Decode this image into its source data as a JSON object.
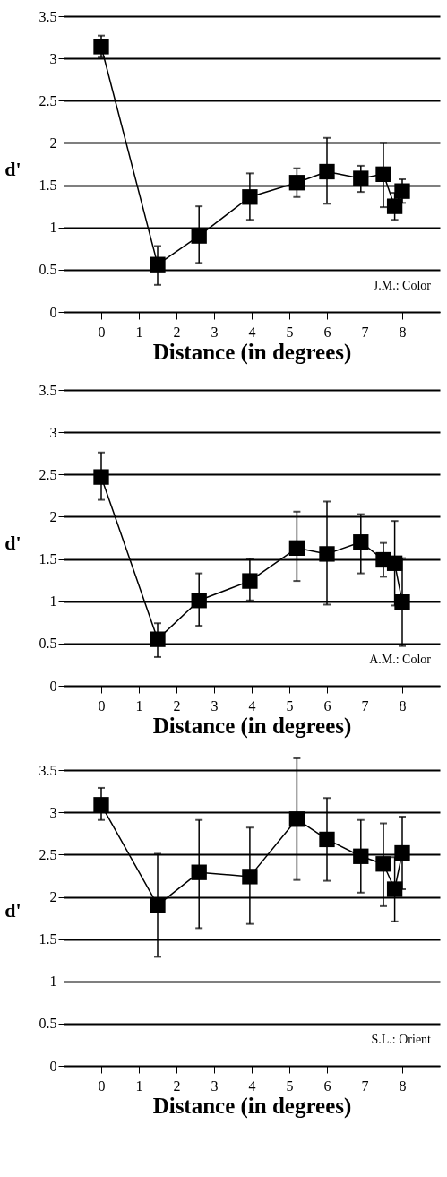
{
  "chart_data": [
    {
      "type": "line",
      "xlabel": "Distance (in degrees)",
      "ylabel": "d'",
      "annotations": [
        "J.M.: Color"
      ],
      "x": [
        0,
        1.5,
        2.6,
        3.95,
        5.2,
        6,
        6.9,
        7.5,
        7.8,
        8
      ],
      "series": [
        {
          "color": "#000000",
          "values": [
            3.14,
            0.56,
            0.9,
            1.36,
            1.53,
            1.66,
            1.58,
            1.63,
            1.25,
            1.43
          ],
          "errors": [
            [
              3.01,
              3.27
            ],
            [
              0.32,
              0.78
            ],
            [
              0.58,
              1.25
            ],
            [
              1.09,
              1.64
            ],
            [
              1.36,
              1.7
            ],
            [
              1.28,
              2.06
            ],
            [
              1.42,
              1.73
            ],
            [
              1.24,
              2.0
            ],
            [
              1.09,
              1.41
            ],
            [
              1.29,
              1.57
            ]
          ]
        }
      ],
      "xlim": [
        -1,
        9
      ],
      "xticks": [
        0,
        1,
        2,
        3,
        4,
        5,
        6,
        7,
        8
      ],
      "ylim": [
        0,
        3.5
      ],
      "yticks": [
        0,
        0.5,
        1,
        1.5,
        2,
        2.5,
        3,
        3.5
      ],
      "grid": "y",
      "marker": "square",
      "line_style": "solid"
    },
    {
      "type": "line",
      "xlabel": "Distance (in degrees)",
      "ylabel": "d'",
      "annotations": [
        "A.M.: Color"
      ],
      "x": [
        0,
        1.5,
        2.6,
        3.95,
        5.2,
        6,
        6.9,
        7.5,
        7.8,
        8
      ],
      "series": [
        {
          "color": "#000000",
          "values": [
            2.47,
            0.55,
            1.01,
            1.24,
            1.63,
            1.56,
            1.7,
            1.49,
            1.45,
            0.99
          ],
          "errors": [
            [
              2.2,
              2.76
            ],
            [
              0.34,
              0.74
            ],
            [
              0.71,
              1.33
            ],
            [
              1.01,
              1.5
            ],
            [
              1.24,
              2.06
            ],
            [
              0.96,
              2.18
            ],
            [
              1.33,
              2.03
            ],
            [
              1.29,
              1.69
            ],
            [
              0.95,
              1.95
            ],
            [
              0.47,
              1.51
            ]
          ]
        }
      ],
      "xlim": [
        -1,
        9
      ],
      "xticks": [
        0,
        1,
        2,
        3,
        4,
        5,
        6,
        7,
        8
      ],
      "ylim": [
        0,
        3.5
      ],
      "yticks": [
        0,
        0.5,
        1,
        1.5,
        2,
        2.5,
        3,
        3.5
      ],
      "grid": "y",
      "marker": "square",
      "line_style": "solid"
    },
    {
      "type": "line",
      "xlabel": "Distance (in degrees)",
      "ylabel": "d'",
      "annotations": [
        "S.L.: Orient"
      ],
      "x": [
        0,
        1.5,
        2.6,
        3.95,
        5.2,
        6,
        6.9,
        7.5,
        7.8,
        8
      ],
      "series": [
        {
          "color": "#000000",
          "values": [
            3.09,
            1.9,
            2.29,
            2.24,
            2.92,
            2.68,
            2.48,
            2.39,
            2.09,
            2.52
          ],
          "errors": [
            [
              2.91,
              3.29
            ],
            [
              1.29,
              2.51
            ],
            [
              1.63,
              2.91
            ],
            [
              1.68,
              2.82
            ],
            [
              2.2,
              3.64
            ],
            [
              2.19,
              3.17
            ],
            [
              2.05,
              2.91
            ],
            [
              1.89,
              2.87
            ],
            [
              1.71,
              2.47
            ],
            [
              2.09,
              2.95
            ]
          ]
        }
      ],
      "xlim": [
        -1,
        9
      ],
      "xticks": [
        0,
        1,
        2,
        3,
        4,
        5,
        6,
        7,
        8
      ],
      "ylim": [
        0,
        3.65
      ],
      "yticks": [
        0,
        0.5,
        1,
        1.5,
        2,
        2.5,
        3,
        3.5
      ],
      "grid": "y",
      "marker": "square",
      "line_style": "solid"
    }
  ]
}
